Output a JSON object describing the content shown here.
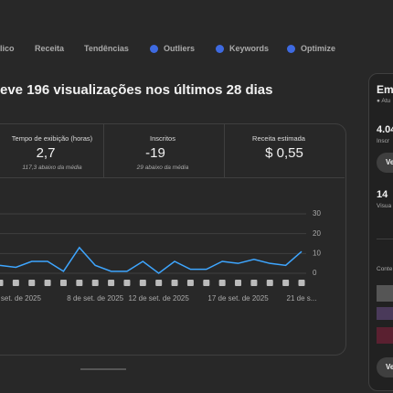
{
  "tabs": [
    "lico",
    "Receita",
    "Tendências",
    "Outliers",
    "Keywords",
    "Optimize"
  ],
  "heading": "eve 196 visualizações nos últimos 28 dias",
  "metrics": [
    {
      "label": "Tempo de exibição (horas)",
      "value": "2,7",
      "note": "117,3 abaixo da média"
    },
    {
      "label": "Inscritos",
      "value": "-19",
      "note": "29 abaixo da média"
    },
    {
      "label": "Receita estimada",
      "value": "$ 0,55"
    }
  ],
  "chart_data": {
    "type": "line",
    "categories": [
      null,
      "de set. de 2025",
      null,
      null,
      null,
      null,
      "8 de set. de 2025",
      null,
      null,
      null,
      "12 de set. de 2025",
      null,
      null,
      null,
      null,
      "17 de set. de 2025",
      null,
      null,
      null,
      "21 de s..."
    ],
    "series": [
      {
        "name": "Visualizações",
        "color": "#3ea6ff",
        "values": [
          4,
          3,
          6,
          6,
          1,
          13,
          4,
          1,
          1,
          6,
          0,
          6,
          2,
          2,
          6,
          5,
          7,
          5,
          4,
          11
        ]
      }
    ],
    "ylim": [
      0,
      30
    ],
    "yticks": [
      0,
      10,
      20,
      30
    ],
    "grid": true
  },
  "side": {
    "title": "Em",
    "status": "Atu",
    "stat1": {
      "value": "4.04",
      "label": "Inscr"
    },
    "button1": "Ve",
    "stat2": {
      "value": "14",
      "label": "Visua"
    },
    "section": "Conte",
    "button2": "Ve"
  }
}
